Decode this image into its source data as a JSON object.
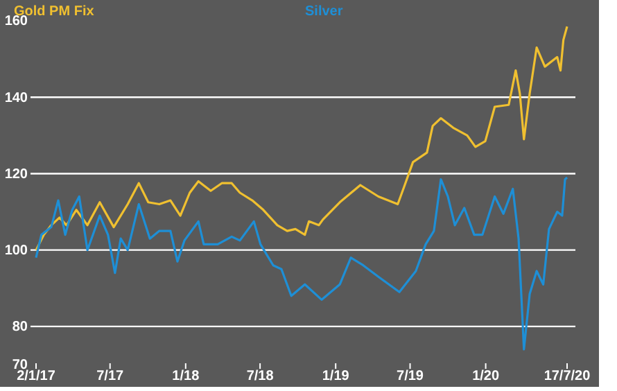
{
  "chart_data": {
    "type": "line",
    "legend": "top left",
    "grid": "y",
    "line_style": "solid",
    "xlim": [
      "2017-01-02",
      "2020-07-17"
    ],
    "xticks": [
      {
        "value": "2017-01-02",
        "label": "2/1/17"
      },
      {
        "value": "2017-07-01",
        "label": "7/17"
      },
      {
        "value": "2018-01-01",
        "label": "1/18"
      },
      {
        "value": "2018-07-01",
        "label": "7/18"
      },
      {
        "value": "2019-01-01",
        "label": "1/19"
      },
      {
        "value": "2019-07-01",
        "label": "7/19"
      },
      {
        "value": "2020-01-01",
        "label": "1/20"
      },
      {
        "value": "2020-07-17",
        "label": "17/7/20"
      }
    ],
    "ylim": [
      70,
      160
    ],
    "yticks": [
      70,
      80,
      100,
      120,
      140,
      160
    ],
    "series": [
      {
        "name": "Gold PM Fix",
        "color": "#f0c030",
        "x": [
          "2017-01-02",
          "2017-01-21",
          "2017-02-08",
          "2017-02-28",
          "2017-03-17",
          "2017-04-10",
          "2017-05-07",
          "2017-06-06",
          "2017-07-10",
          "2017-08-13",
          "2017-09-09",
          "2017-10-02",
          "2017-10-29",
          "2017-11-25",
          "2017-12-19",
          "2018-01-11",
          "2018-02-01",
          "2018-03-03",
          "2018-03-30",
          "2018-04-23",
          "2018-05-13",
          "2018-06-12",
          "2018-07-09",
          "2018-08-12",
          "2018-09-05",
          "2018-09-25",
          "2018-10-18",
          "2018-10-28",
          "2018-11-21",
          "2018-12-01",
          "2019-01-11",
          "2019-03-02",
          "2019-04-15",
          "2019-06-01",
          "2019-06-18",
          "2019-07-08",
          "2019-08-11",
          "2019-08-25",
          "2019-09-14",
          "2019-10-14",
          "2019-11-17",
          "2019-12-07",
          "2019-12-31",
          "2020-01-23",
          "2020-02-26",
          "2020-03-14",
          "2020-03-24",
          "2020-04-03",
          "2020-04-17",
          "2020-05-04",
          "2020-05-24",
          "2020-06-23",
          "2020-07-01",
          "2020-07-08",
          "2020-07-17"
        ],
        "values": [
          100,
          104,
          106.5,
          108.5,
          106.5,
          110.5,
          106.5,
          112.5,
          106,
          112,
          117.5,
          112.5,
          112,
          113,
          109,
          115,
          118,
          115.5,
          117.5,
          117.5,
          115,
          113,
          110.5,
          106.5,
          105,
          105.5,
          104,
          107.5,
          106.5,
          108,
          112.5,
          117,
          114,
          112,
          117,
          123,
          125.5,
          132.5,
          134.5,
          132,
          130,
          127,
          128.5,
          137.5,
          138,
          147,
          141,
          129,
          141,
          153,
          148,
          150.5,
          147,
          155,
          158.5
        ]
      },
      {
        "name": "Silver",
        "color": "#1e8fd6",
        "x": [
          "2017-01-02",
          "2017-01-15",
          "2017-02-08",
          "2017-02-25",
          "2017-03-14",
          "2017-03-31",
          "2017-04-17",
          "2017-05-07",
          "2017-06-06",
          "2017-06-26",
          "2017-07-13",
          "2017-07-27",
          "2017-08-13",
          "2017-09-09",
          "2017-10-06",
          "2017-10-29",
          "2017-11-25",
          "2017-12-12",
          "2017-12-29",
          "2018-02-01",
          "2018-02-14",
          "2018-03-20",
          "2018-04-23",
          "2018-05-13",
          "2018-06-16",
          "2018-07-02",
          "2018-08-02",
          "2018-08-22",
          "2018-09-15",
          "2018-10-18",
          "2018-11-28",
          "2019-01-11",
          "2019-02-07",
          "2019-03-09",
          "2019-04-15",
          "2019-06-05",
          "2019-07-15",
          "2019-08-08",
          "2019-08-28",
          "2019-09-14",
          "2019-10-01",
          "2019-10-18",
          "2019-11-10",
          "2019-12-04",
          "2019-12-24",
          "2020-01-23",
          "2020-02-13",
          "2020-03-07",
          "2020-03-21",
          "2020-04-03",
          "2020-04-17",
          "2020-05-04",
          "2020-05-20",
          "2020-06-03",
          "2020-06-23",
          "2020-07-05",
          "2020-07-12",
          "2020-07-17"
        ],
        "values": [
          98,
          104,
          106,
          113,
          104,
          110.5,
          114,
          100,
          109,
          104,
          94,
          103,
          100,
          112,
          103,
          105,
          105,
          97,
          102.5,
          107.5,
          101.5,
          101.5,
          103.5,
          102.5,
          107.5,
          101.5,
          96,
          95,
          88,
          91,
          87,
          91,
          98,
          96,
          93,
          89,
          94.5,
          101.5,
          105,
          118.5,
          114,
          106.5,
          111,
          104,
          104,
          114,
          109.5,
          116,
          103,
          74,
          88.5,
          94.5,
          91,
          105.5,
          110,
          109,
          118.5,
          119
        ]
      }
    ]
  }
}
